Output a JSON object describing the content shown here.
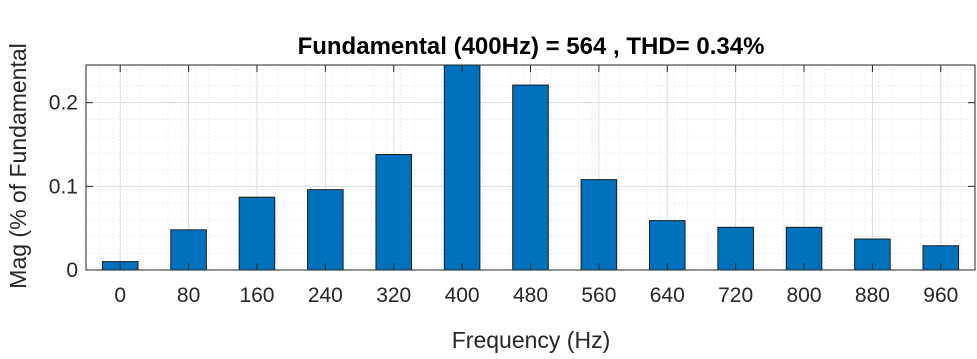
{
  "chart_data": {
    "type": "bar",
    "title": "Fundamental (400Hz) = 564 , THD= 0.34%",
    "xlabel": "Frequency (Hz)",
    "ylabel": "Mag (% of Fundamental",
    "categories": [
      "0",
      "80",
      "160",
      "240",
      "320",
      "400",
      "480",
      "560",
      "640",
      "720",
      "800",
      "880",
      "960"
    ],
    "values": [
      0.01,
      0.048,
      0.087,
      0.096,
      0.138,
      0.245,
      0.221,
      0.108,
      0.059,
      0.051,
      0.051,
      0.037,
      0.029
    ],
    "yticks": [
      "0",
      "0.1",
      "0.2"
    ],
    "ylim": [
      0,
      0.245
    ],
    "grid": true,
    "bar_color": "#0072BD"
  }
}
